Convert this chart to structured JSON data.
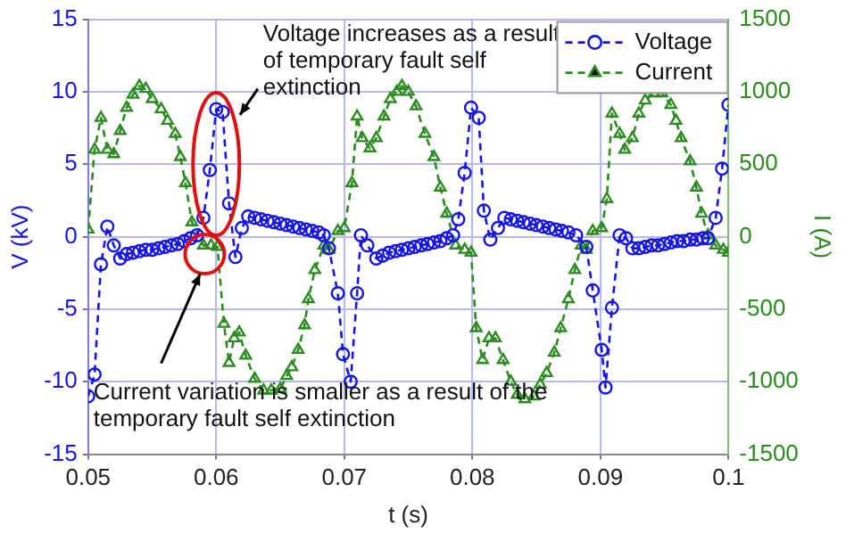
{
  "chart_data": {
    "type": "line",
    "xlabel": "t (s)",
    "ylabel": "V (kV)",
    "y2label": "I (A)",
    "xlim": [
      0.05,
      0.1
    ],
    "xticks": [
      0.05,
      0.06,
      0.07,
      0.08,
      0.09,
      0.1
    ],
    "ylim": [
      -15,
      15
    ],
    "yticks": [
      -15,
      -10,
      -5,
      0,
      5,
      10,
      15
    ],
    "y2lim": [
      -1500,
      1500
    ],
    "y2ticks": [
      -1500,
      -1000,
      -500,
      0,
      500,
      1000,
      1500
    ],
    "grid": true,
    "legend": "top right",
    "line_style": "dashed",
    "annotations": [
      "Voltage increases as a result of temporary fault self extinction",
      "Current variation is smaller as a result of the temporary fault self extinction"
    ],
    "series": [
      {
        "name": "Voltage",
        "color": "#1414e6",
        "marker": "circle",
        "x": [
          0.05,
          0.0505,
          0.051,
          0.0515,
          0.052,
          0.0525,
          0.053,
          0.0535,
          0.054,
          0.0545,
          0.055,
          0.0555,
          0.056,
          0.0565,
          0.057,
          0.0575,
          0.058,
          0.0585,
          0.059,
          0.0595,
          0.06,
          0.0605,
          0.061,
          0.0615,
          0.062,
          0.0625,
          0.063,
          0.0635,
          0.064,
          0.0645,
          0.065,
          0.0655,
          0.066,
          0.0665,
          0.067,
          0.0675,
          0.068,
          0.0684,
          0.0688,
          0.0695,
          0.0699,
          0.0705,
          0.071,
          0.0713,
          0.0718,
          0.0725,
          0.073,
          0.0735,
          0.074,
          0.0745,
          0.075,
          0.0755,
          0.076,
          0.0765,
          0.077,
          0.0775,
          0.078,
          0.0785,
          0.0789,
          0.0794,
          0.0799,
          0.0805,
          0.0809,
          0.0814,
          0.082,
          0.0825,
          0.083,
          0.0835,
          0.084,
          0.0845,
          0.085,
          0.0855,
          0.086,
          0.0865,
          0.087,
          0.0875,
          0.0881,
          0.0889,
          0.0894,
          0.0901,
          0.0904,
          0.0909,
          0.0915,
          0.092,
          0.0925,
          0.093,
          0.0935,
          0.094,
          0.0945,
          0.095,
          0.0955,
          0.096,
          0.0965,
          0.097,
          0.0975,
          0.098,
          0.0984,
          0.099,
          0.0995,
          0.1
        ],
        "values": [
          -11,
          -9.5,
          -1.9,
          0.7,
          -0.6,
          -1.5,
          -1.2,
          -1.1,
          -1,
          -0.9,
          -0.9,
          -0.8,
          -0.7,
          -0.6,
          -0.5,
          -0.3,
          -0.1,
          0.1,
          1.3,
          4.6,
          8.8,
          8.6,
          2.3,
          -1.4,
          0.6,
          1.4,
          1.3,
          1.2,
          1.1,
          1,
          0.9,
          0.8,
          0.7,
          0.6,
          0.5,
          0.4,
          0.3,
          0.1,
          -0.8,
          -3.9,
          -8.1,
          -10,
          -3.9,
          0.1,
          -0.6,
          -1.5,
          -1.3,
          -1.1,
          -1,
          -0.9,
          -0.8,
          -0.7,
          -0.6,
          -0.5,
          -0.4,
          -0.3,
          -0.1,
          0.1,
          1.2,
          4.4,
          8.9,
          8.2,
          1.8,
          -0.2,
          0.6,
          1.3,
          1.2,
          1.1,
          1,
          0.9,
          0.8,
          0.7,
          0.6,
          0.5,
          0.4,
          0.3,
          0.1,
          -0.7,
          -3.7,
          -7.8,
          -10.4,
          -4.9,
          0.1,
          -0.1,
          -0.8,
          -0.8,
          -0.7,
          -0.6,
          -0.6,
          -0.5,
          -0.4,
          -0.3,
          -0.3,
          -0.2,
          -0.2,
          -0.1,
          -0.1,
          1.3,
          4.7,
          9.1
        ]
      },
      {
        "name": "Current",
        "color": "#2a8c1e",
        "marker": "triangle",
        "axis": "y2",
        "x": [
          0.05,
          0.0505,
          0.051,
          0.0515,
          0.052,
          0.0525,
          0.053,
          0.0535,
          0.054,
          0.0545,
          0.055,
          0.0557,
          0.0562,
          0.0568,
          0.0572,
          0.0576,
          0.0581,
          0.059,
          0.0596,
          0.0601,
          0.0606,
          0.061,
          0.0614,
          0.0618,
          0.0623,
          0.063,
          0.0637,
          0.0643,
          0.065,
          0.0655,
          0.0659,
          0.0664,
          0.0669,
          0.0672,
          0.0677,
          0.0684,
          0.0688,
          0.0695,
          0.07,
          0.0706,
          0.071,
          0.0714,
          0.072,
          0.0725,
          0.0731,
          0.0736,
          0.0741,
          0.0745,
          0.075,
          0.0756,
          0.0763,
          0.077,
          0.0775,
          0.078,
          0.0787,
          0.0794,
          0.0799,
          0.0803,
          0.0808,
          0.0813,
          0.0818,
          0.0824,
          0.083,
          0.0835,
          0.0841,
          0.0848,
          0.0853,
          0.0858,
          0.0864,
          0.0869,
          0.0875,
          0.088,
          0.0885,
          0.0889,
          0.0894,
          0.0901,
          0.0905,
          0.0909,
          0.0915,
          0.0919,
          0.0925,
          0.093,
          0.0935,
          0.0942,
          0.0948,
          0.0955,
          0.0959,
          0.0963,
          0.097,
          0.0975,
          0.0979,
          0.0984,
          0.099,
          0.0996,
          0.1
        ],
        "values": [
          50,
          600,
          820,
          600,
          570,
          730,
          890,
          980,
          1040,
          1020,
          950,
          880,
          800,
          710,
          550,
          370,
          100,
          -60,
          -60,
          -70,
          -600,
          -870,
          -700,
          -660,
          -820,
          -980,
          -1060,
          -1060,
          -1050,
          -960,
          -900,
          -780,
          -610,
          -430,
          -230,
          -60,
          -90,
          40,
          60,
          370,
          830,
          680,
          610,
          680,
          830,
          950,
          1000,
          1040,
          1000,
          900,
          710,
          550,
          340,
          160,
          -60,
          -90,
          -110,
          -630,
          -850,
          -700,
          -700,
          -850,
          -1000,
          -1090,
          -1120,
          -1100,
          -1020,
          -940,
          -800,
          -630,
          -430,
          -230,
          -60,
          -90,
          40,
          60,
          260,
          850,
          710,
          600,
          680,
          850,
          940,
          990,
          990,
          910,
          800,
          680,
          520,
          340,
          160,
          10,
          -60,
          -90,
          -110
        ]
      }
    ]
  }
}
